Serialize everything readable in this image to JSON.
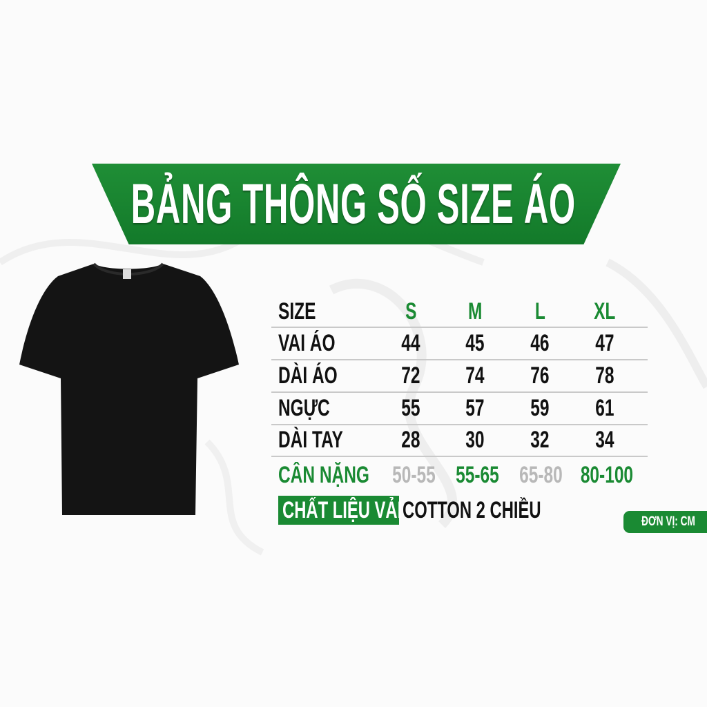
{
  "title": "BẢNG THÔNG SỐ SIZE ÁO",
  "colors": {
    "brand_green": "#1a8a33",
    "muted_grey": "#b8b8b8",
    "text": "#111111"
  },
  "table": {
    "header_label": "SIZE",
    "sizes": [
      "S",
      "M",
      "L",
      "XL"
    ],
    "rows": [
      {
        "label": "VAI ÁO",
        "values": [
          "44",
          "45",
          "46",
          "47"
        ]
      },
      {
        "label": "DÀI ÁO",
        "values": [
          "72",
          "74",
          "76",
          "78"
        ]
      },
      {
        "label": "NGỰC",
        "values": [
          "55",
          "57",
          "59",
          "61"
        ]
      },
      {
        "label": "DÀI TAY",
        "values": [
          "28",
          "30",
          "32",
          "34"
        ]
      }
    ],
    "weight": {
      "label": "CÂN NẶNG",
      "values": [
        "50-55",
        "55-65",
        "65-80",
        "80-100"
      ]
    }
  },
  "material": {
    "label": "CHẤT LIỆU VẢI",
    "value": "COTTON 2 CHIỀU"
  },
  "unit": "ĐƠN VỊ: CM",
  "product_image": "black-tshirt"
}
